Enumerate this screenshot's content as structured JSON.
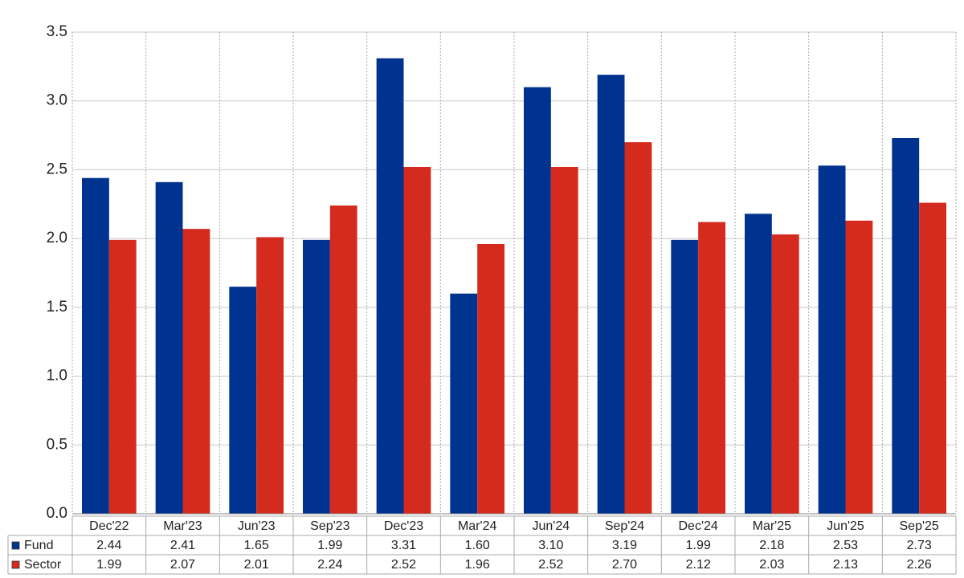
{
  "chart_data": {
    "type": "bar",
    "categories": [
      "Dec'22",
      "Mar'23",
      "Jun'23",
      "Sep'23",
      "Dec'23",
      "Mar'24",
      "Jun'24",
      "Sep'24",
      "Dec'24",
      "Mar'25",
      "Jun'25",
      "Sep'25"
    ],
    "series": [
      {
        "name": "Fund",
        "color": "#00338f",
        "values": [
          2.44,
          2.41,
          1.65,
          1.99,
          3.31,
          1.6,
          3.1,
          3.19,
          1.99,
          2.18,
          2.53,
          2.73
        ],
        "value_labels": [
          "2.44",
          "2.41",
          "1.65",
          "1.99",
          "3.31",
          "1.60",
          "3.10",
          "3.19",
          "1.99",
          "2.18",
          "2.53",
          "2.73"
        ]
      },
      {
        "name": "Sector",
        "color": "#d52b1e",
        "values": [
          1.99,
          2.07,
          2.01,
          2.24,
          2.52,
          1.96,
          2.52,
          2.7,
          2.12,
          2.03,
          2.13,
          2.26
        ],
        "value_labels": [
          "1.99",
          "2.07",
          "2.01",
          "2.24",
          "2.52",
          "1.96",
          "2.52",
          "2.70",
          "2.12",
          "2.03",
          "2.13",
          "2.26"
        ]
      }
    ],
    "ylim": [
      0,
      3.5
    ],
    "yticks": [
      {
        "value": 0,
        "label": "0.0"
      },
      0.5,
      {
        "value": 1,
        "label": "1.0"
      },
      1.5,
      {
        "value": 2,
        "label": "2.0"
      },
      2.5,
      {
        "value": 3,
        "label": "3.0"
      },
      3.5
    ],
    "grid": true
  }
}
